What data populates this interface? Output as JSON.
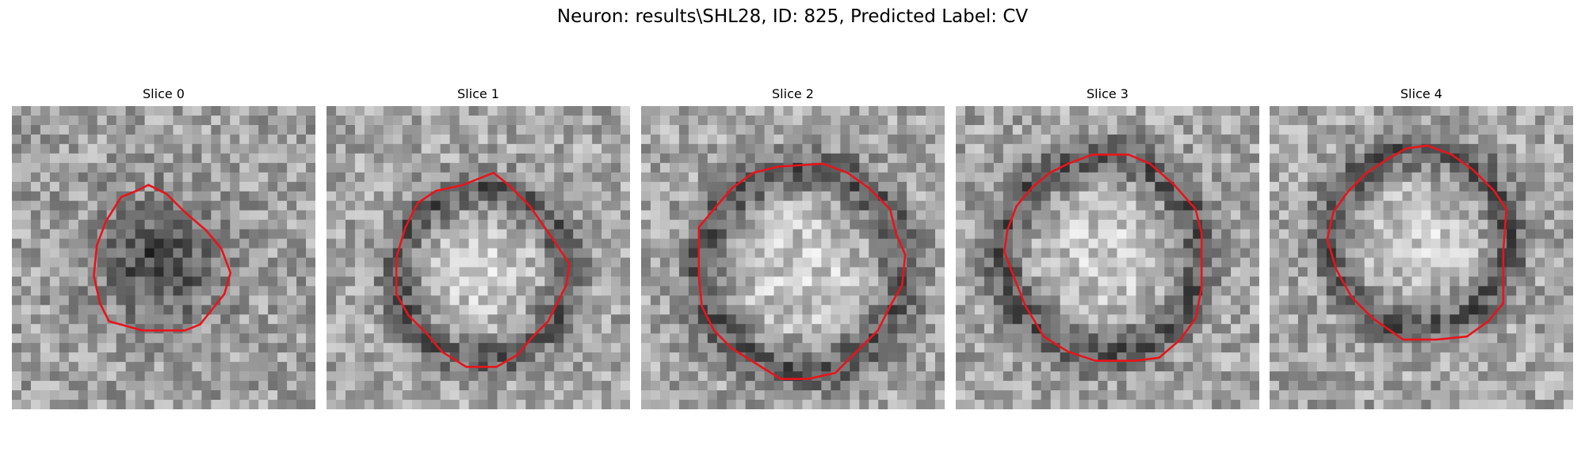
{
  "figure": {
    "title": "Neuron: results\\SHL28, ID: 825, Predicted Label: CV"
  },
  "colors": {
    "contour": "#e8141b",
    "background": "#ffffff"
  },
  "panels": [
    {
      "title": "Slice 0",
      "texture": "dark-center",
      "contour": [
        [
          0.45,
          0.26
        ],
        [
          0.51,
          0.29
        ],
        [
          0.57,
          0.35
        ],
        [
          0.64,
          0.41
        ],
        [
          0.69,
          0.47
        ],
        [
          0.72,
          0.55
        ],
        [
          0.7,
          0.62
        ],
        [
          0.66,
          0.67
        ],
        [
          0.62,
          0.72
        ],
        [
          0.57,
          0.74
        ],
        [
          0.43,
          0.74
        ],
        [
          0.32,
          0.71
        ],
        [
          0.29,
          0.65
        ],
        [
          0.27,
          0.56
        ],
        [
          0.28,
          0.46
        ],
        [
          0.31,
          0.38
        ],
        [
          0.36,
          0.3
        ],
        [
          0.41,
          0.28
        ]
      ]
    },
    {
      "title": "Slice 1",
      "texture": "bright-center-dark-ring",
      "contour": [
        [
          0.45,
          0.26
        ],
        [
          0.55,
          0.22
        ],
        [
          0.6,
          0.26
        ],
        [
          0.67,
          0.33
        ],
        [
          0.74,
          0.43
        ],
        [
          0.8,
          0.52
        ],
        [
          0.79,
          0.59
        ],
        [
          0.76,
          0.65
        ],
        [
          0.73,
          0.71
        ],
        [
          0.68,
          0.76
        ],
        [
          0.63,
          0.82
        ],
        [
          0.56,
          0.86
        ],
        [
          0.46,
          0.86
        ],
        [
          0.38,
          0.81
        ],
        [
          0.33,
          0.75
        ],
        [
          0.27,
          0.69
        ],
        [
          0.23,
          0.62
        ],
        [
          0.23,
          0.5
        ],
        [
          0.26,
          0.4
        ],
        [
          0.3,
          0.32
        ],
        [
          0.36,
          0.28
        ]
      ]
    },
    {
      "title": "Slice 2",
      "texture": "bright-center-dark-ring",
      "contour": [
        [
          0.37,
          0.22
        ],
        [
          0.45,
          0.2
        ],
        [
          0.6,
          0.19
        ],
        [
          0.68,
          0.22
        ],
        [
          0.75,
          0.27
        ],
        [
          0.82,
          0.34
        ],
        [
          0.84,
          0.42
        ],
        [
          0.87,
          0.49
        ],
        [
          0.86,
          0.59
        ],
        [
          0.82,
          0.66
        ],
        [
          0.78,
          0.74
        ],
        [
          0.71,
          0.81
        ],
        [
          0.64,
          0.88
        ],
        [
          0.55,
          0.9
        ],
        [
          0.46,
          0.9
        ],
        [
          0.38,
          0.85
        ],
        [
          0.3,
          0.8
        ],
        [
          0.24,
          0.74
        ],
        [
          0.2,
          0.66
        ],
        [
          0.19,
          0.56
        ],
        [
          0.19,
          0.4
        ],
        [
          0.24,
          0.34
        ],
        [
          0.3,
          0.27
        ]
      ]
    },
    {
      "title": "Slice 3",
      "texture": "bright-center-dark-ring",
      "contour": [
        [
          0.37,
          0.19
        ],
        [
          0.45,
          0.16
        ],
        [
          0.57,
          0.16
        ],
        [
          0.64,
          0.19
        ],
        [
          0.72,
          0.26
        ],
        [
          0.79,
          0.34
        ],
        [
          0.81,
          0.42
        ],
        [
          0.81,
          0.6
        ],
        [
          0.79,
          0.7
        ],
        [
          0.74,
          0.77
        ],
        [
          0.67,
          0.83
        ],
        [
          0.59,
          0.84
        ],
        [
          0.46,
          0.84
        ],
        [
          0.37,
          0.81
        ],
        [
          0.29,
          0.76
        ],
        [
          0.23,
          0.66
        ],
        [
          0.19,
          0.56
        ],
        [
          0.16,
          0.48
        ],
        [
          0.17,
          0.41
        ],
        [
          0.2,
          0.33
        ],
        [
          0.25,
          0.27
        ],
        [
          0.31,
          0.22
        ]
      ]
    },
    {
      "title": "Slice 4",
      "texture": "bright-center-dark-ring",
      "contour": [
        [
          0.38,
          0.18
        ],
        [
          0.45,
          0.14
        ],
        [
          0.52,
          0.13
        ],
        [
          0.6,
          0.16
        ],
        [
          0.67,
          0.21
        ],
        [
          0.74,
          0.28
        ],
        [
          0.78,
          0.34
        ],
        [
          0.77,
          0.48
        ],
        [
          0.77,
          0.65
        ],
        [
          0.72,
          0.71
        ],
        [
          0.65,
          0.76
        ],
        [
          0.55,
          0.77
        ],
        [
          0.44,
          0.77
        ],
        [
          0.34,
          0.7
        ],
        [
          0.27,
          0.63
        ],
        [
          0.22,
          0.54
        ],
        [
          0.19,
          0.44
        ],
        [
          0.21,
          0.35
        ],
        [
          0.26,
          0.28
        ],
        [
          0.32,
          0.22
        ]
      ]
    }
  ]
}
